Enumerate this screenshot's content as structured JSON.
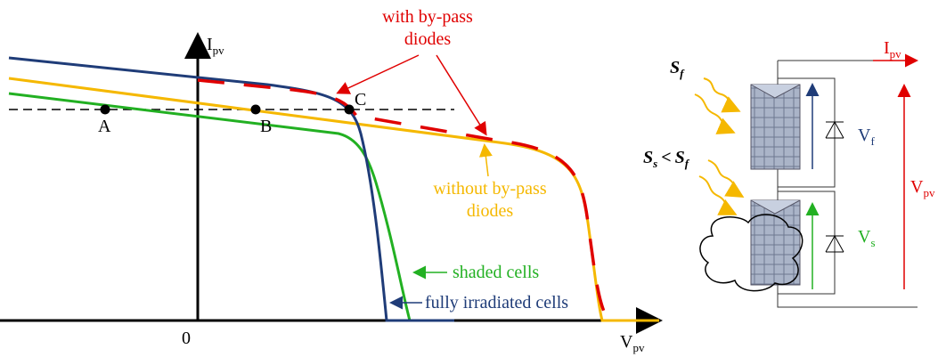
{
  "plot": {
    "y_axis": {
      "label": "I",
      "sub": "pv"
    },
    "x_axis": {
      "label": "V",
      "sub": "pv"
    },
    "origin": "0",
    "points": [
      "A",
      "B",
      "C"
    ],
    "with_bypass": [
      "with by-pass",
      "diodes"
    ],
    "without_bypass": [
      "without by-pass",
      "diodes"
    ],
    "shaded": "shaded cells",
    "fully": "fully irradiated cells"
  },
  "circuit": {
    "s_f": {
      "label": "S",
      "sub": "f"
    },
    "s_s": {
      "label": "S",
      "sub": "s",
      "relation": "<",
      "label2": "S",
      "sub2": "f"
    },
    "current": {
      "label": "I",
      "sub": "pv"
    },
    "v_f": {
      "label": "V",
      "sub": "f"
    },
    "v_s": {
      "label": "V",
      "sub": "s"
    },
    "v_pv": {
      "label": "V",
      "sub": "pv"
    }
  }
}
